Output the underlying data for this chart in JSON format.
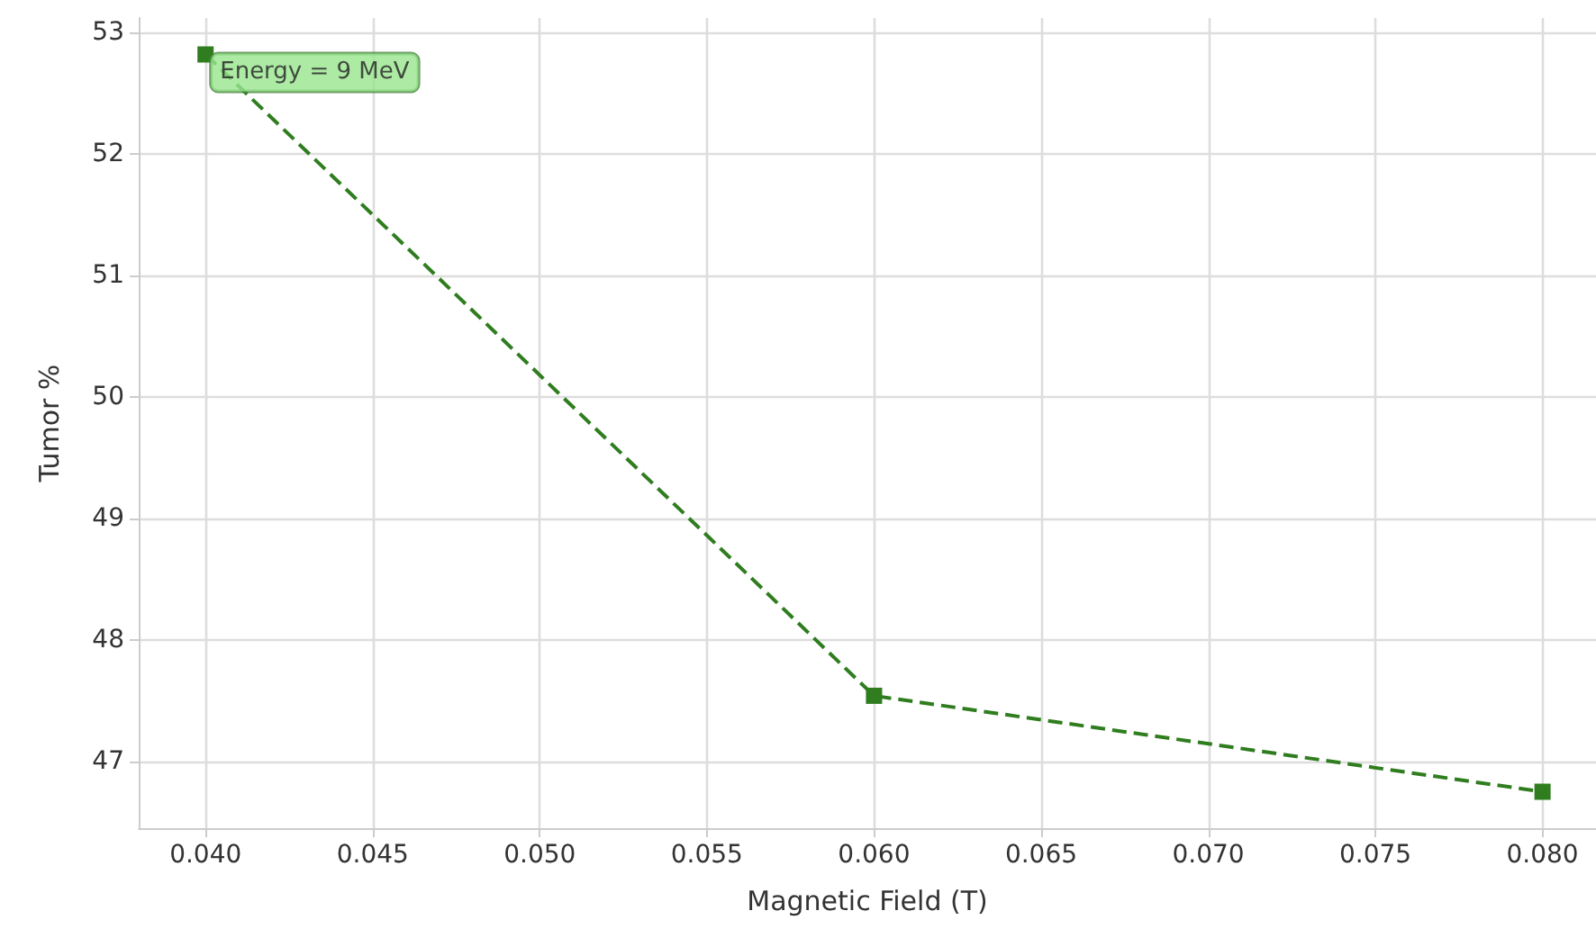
{
  "chart_data": {
    "type": "line",
    "xlabel": "Magnetic Field (T)",
    "ylabel": "Tumor %",
    "x": [
      0.04,
      0.06,
      0.08
    ],
    "series": [
      {
        "color": "#2f7d1f",
        "values": [
          52.82,
          47.54,
          46.75
        ]
      }
    ],
    "annotations": [
      {
        "text": "Energy = 9 MeV",
        "x": 0.04,
        "y": 52.82
      }
    ],
    "xlim": [
      0.038,
      0.0816
    ],
    "xticks": [
      {
        "value": 0.04,
        "label": "0.040"
      },
      {
        "value": 0.045,
        "label": "0.045"
      },
      {
        "value": 0.05,
        "label": "0.050"
      },
      {
        "value": 0.055,
        "label": "0.055"
      },
      {
        "value": 0.06,
        "label": "0.060"
      },
      {
        "value": 0.065,
        "label": "0.065"
      },
      {
        "value": 0.07,
        "label": "0.070"
      },
      {
        "value": 0.075,
        "label": "0.075"
      },
      {
        "value": 0.08,
        "label": "0.080"
      }
    ],
    "ylim": [
      46.45,
      53.12
    ],
    "yticks": [
      47,
      48,
      49,
      50,
      51,
      52,
      53
    ],
    "grid": true,
    "marker": "square",
    "line_style": "dashed"
  }
}
